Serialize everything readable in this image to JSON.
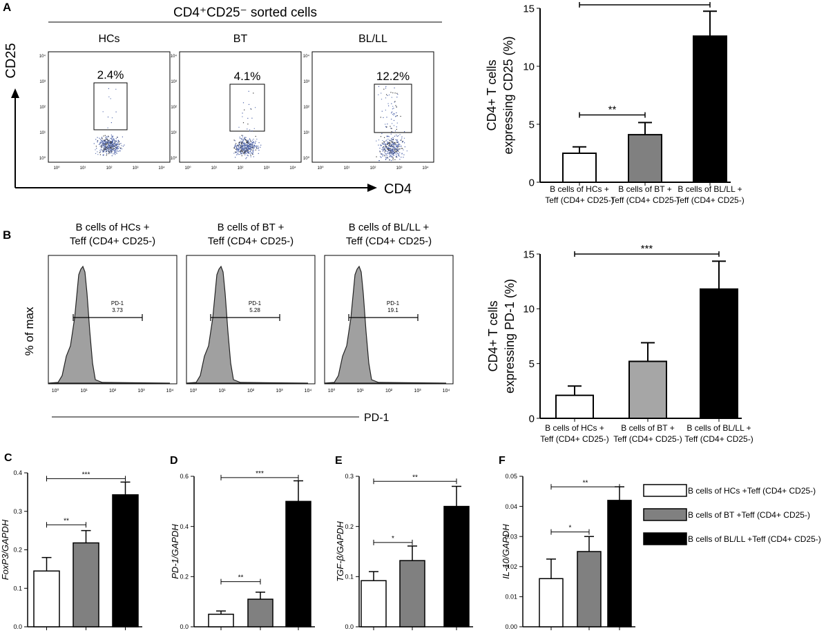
{
  "colors": {
    "white_bar": "#ffffff",
    "gray_a": "#808080",
    "gray_b": "#a6a6a6",
    "black_bar": "#000000",
    "histo_fill": "#a0a0a0",
    "dot_blue": "#4a5fa8"
  },
  "panel_A": {
    "label": "A",
    "sorted_title": "CD4⁺CD25⁻ sorted cells",
    "y_axis": "CD25",
    "x_axis": "CD4",
    "plots": [
      {
        "title": "HCs",
        "gate": "2.4%"
      },
      {
        "title": "BT",
        "gate": "4.1%"
      },
      {
        "title": "BL/LL",
        "gate": "12.2%"
      }
    ],
    "log_ticks": [
      "10⁰",
      "10¹",
      "10²",
      "10³",
      "10⁴"
    ]
  },
  "panel_B": {
    "label": "B",
    "y_axis": "% of max",
    "x_axis": "PD-1",
    "plots": [
      {
        "title1": "B cells of HCs +",
        "title2": "Teff (CD4+ CD25-)",
        "gate_name": "PD-1",
        "gate_value": "3.73"
      },
      {
        "title1": "B cells of BT +",
        "title2": "Teff (CD4+ CD25-)",
        "gate_name": "PD-1",
        "gate_value": "5.28"
      },
      {
        "title1": "B cells of BL/LL +",
        "title2": "Teff (CD4+ CD25-)",
        "gate_name": "PD-1",
        "gate_value": "19.1"
      }
    ],
    "log_ticks": [
      "10⁰",
      "10¹",
      "10²",
      "10³",
      "10⁴"
    ]
  },
  "chart_data": [
    {
      "id": "A",
      "type": "bar",
      "ylabel1": "CD4+ T cells",
      "ylabel2": "expressing CD25 (%)",
      "ylim": [
        0,
        15
      ],
      "yticks": [
        "0",
        "5",
        "10",
        "15"
      ],
      "ytick_values": [
        0,
        5,
        10,
        15
      ],
      "categories": [
        [
          "B cells of HCs +",
          "Teff (CD4+ CD25-)"
        ],
        [
          "B cells of BT +",
          "Teff (CD4+ CD25-)"
        ],
        [
          "B cells of BL/LL +",
          "Teff (CD4+ CD25-)"
        ]
      ],
      "values": [
        2.5,
        4.1,
        12.6
      ],
      "errors": [
        0.55,
        1.05,
        2.15
      ],
      "significance": [
        {
          "from": 0,
          "to": 1,
          "label": "**",
          "y": 5.8
        },
        {
          "from": 0,
          "to": 2,
          "label": "***",
          "y": 15.3
        }
      ]
    },
    {
      "id": "B",
      "type": "bar",
      "ylabel1": "CD4+ T cells",
      "ylabel2": "expressing PD-1 (%)",
      "ylim": [
        0,
        15
      ],
      "yticks": [
        "0",
        "5",
        "10",
        "15"
      ],
      "ytick_values": [
        0,
        5,
        10,
        15
      ],
      "categories": [
        [
          "B cells of HCs +",
          "Teff (CD4+ CD25-)"
        ],
        [
          "B cells of BT +",
          "Teff (CD4+ CD25-)"
        ],
        [
          "B cells of BL/LL +",
          "Teff (CD4+ CD25-)"
        ]
      ],
      "values": [
        2.1,
        5.2,
        11.8
      ],
      "errors": [
        0.85,
        1.7,
        2.55
      ],
      "significance": [
        {
          "from": 0,
          "to": 2,
          "label": "***",
          "y": 15.0
        }
      ]
    },
    {
      "id": "C",
      "type": "bar",
      "ylabel": "FoxP3/GAPDH",
      "ylim": [
        0,
        0.4
      ],
      "yticks": [
        "0.0",
        "0.1",
        "0.2",
        "0.3",
        "0.4"
      ],
      "ytick_values": [
        0,
        0.1,
        0.2,
        0.3,
        0.4
      ],
      "values": [
        0.145,
        0.218,
        0.343
      ],
      "errors": [
        0.035,
        0.032,
        0.033
      ],
      "significance": [
        {
          "from": 0,
          "to": 1,
          "label": "**",
          "y": 0.265
        },
        {
          "from": 0,
          "to": 2,
          "label": "***",
          "y": 0.385
        }
      ]
    },
    {
      "id": "D",
      "type": "bar",
      "ylabel": "PD-1/GAPDH",
      "ylim": [
        0,
        0.6
      ],
      "yticks": [
        "0.0",
        "0.2",
        "0.4",
        "0.6"
      ],
      "ytick_values": [
        0,
        0.2,
        0.4,
        0.6
      ],
      "values": [
        0.05,
        0.11,
        0.5
      ],
      "errors": [
        0.013,
        0.028,
        0.082
      ],
      "significance": [
        {
          "from": 0,
          "to": 1,
          "label": "**",
          "y": 0.18
        },
        {
          "from": 0,
          "to": 2,
          "label": "***",
          "y": 0.595
        }
      ]
    },
    {
      "id": "E",
      "type": "bar",
      "ylabel": "TGF-β/GAPDH",
      "ylim": [
        0,
        0.3
      ],
      "yticks": [
        "0.0",
        "0.1",
        "0.2",
        "0.3"
      ],
      "ytick_values": [
        0,
        0.1,
        0.2,
        0.3
      ],
      "values": [
        0.092,
        0.132,
        0.24
      ],
      "errors": [
        0.018,
        0.029,
        0.04
      ],
      "significance": [
        {
          "from": 0,
          "to": 1,
          "label": "*",
          "y": 0.168
        },
        {
          "from": 0,
          "to": 2,
          "label": "**",
          "y": 0.29
        }
      ]
    },
    {
      "id": "F",
      "type": "bar",
      "ylabel": "IL-10/GAPDH",
      "ylim": [
        0,
        0.05
      ],
      "yticks": [
        "0.00",
        "0.01",
        "0.02",
        "0.03",
        "0.04",
        "0.05"
      ],
      "ytick_values": [
        0,
        0.01,
        0.02,
        0.03,
        0.04,
        0.05
      ],
      "values": [
        0.016,
        0.025,
        0.042
      ],
      "errors": [
        0.0065,
        0.005,
        0.0045
      ],
      "significance": [
        {
          "from": 0,
          "to": 1,
          "label": "*",
          "y": 0.0315
        },
        {
          "from": 0,
          "to": 2,
          "label": "**",
          "y": 0.0465
        }
      ]
    }
  ],
  "legend": [
    {
      "label": "B cells of HCs +Teff (CD4+ CD25-)",
      "color": "#ffffff"
    },
    {
      "label": "B cells of BT +Teff (CD4+ CD25-)",
      "color": "#808080"
    },
    {
      "label": "B cells of BL/LL +Teff (CD4+ CD25-)",
      "color": "#000000"
    }
  ]
}
